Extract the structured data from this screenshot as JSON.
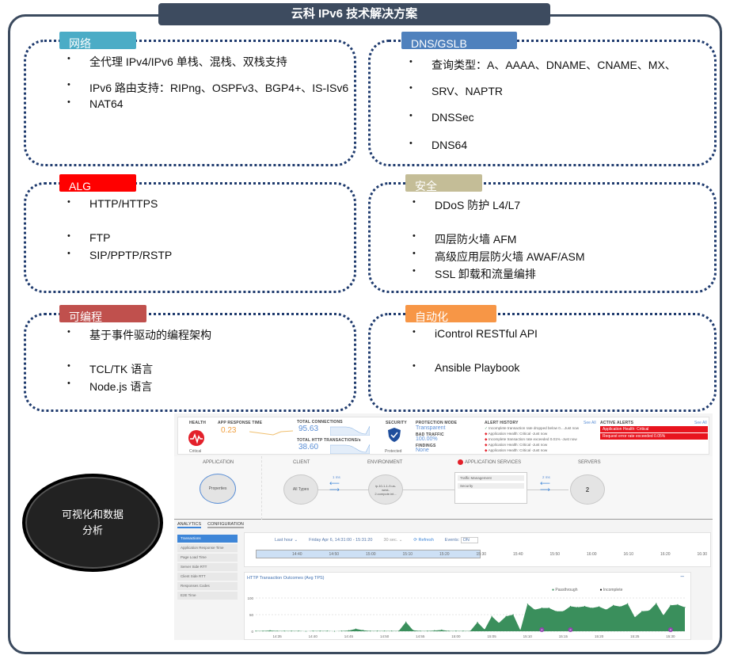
{
  "title": "云科 IPv6 技术解决方案",
  "sections": [
    {
      "label": "网络",
      "color": "#4bacc6",
      "items": [
        "全代理 IPv4/IPv6 单栈、混栈、双栈支持",
        "IPv6 路由支持：RIPng、OSPFv3、BGP4+、IS-ISv6",
        "NAT64"
      ]
    },
    {
      "label": "DNS/GSLB",
      "color": "#4f81bd",
      "items": [
        "查询类型：A、AAAA、DNAME、CNAME、MX、",
        "SRV、NAPTR",
        "DNSSec",
        "DNS64"
      ]
    },
    {
      "label": "ALG",
      "color": "#ff0000",
      "items": [
        "HTTP/HTTPS",
        "FTP",
        "SIP/PPTP/RSTP"
      ]
    },
    {
      "label": "安全",
      "color": "#c4bd97",
      "items": [
        "DDoS 防护 L4/L7",
        "四层防火墙 AFM",
        "高级应用层防火墙 AWAF/ASM",
        "SSL 卸载和流量编排"
      ]
    },
    {
      "label": "可编程",
      "color": "#c0504d",
      "items": [
        "基于事件驱动的编程架构",
        "TCL/TK 语言",
        "Node.js 语言"
      ]
    },
    {
      "label": "自动化",
      "color": "#f79646",
      "items": [
        "iControl RESTful API",
        "Ansible Playbook"
      ]
    }
  ],
  "circle_text": "可视化和数据分析",
  "dashboard": {
    "health": {
      "label": "HEALTH",
      "status": "Critical"
    },
    "app_response": {
      "label": "APP RESPONSE TIME",
      "value": "0.23"
    },
    "total_connections": {
      "label": "TOTAL CONNECTIONS",
      "value": "95.63"
    },
    "total_http": {
      "label": "TOTAL HTTP TRANSACTIONS/s",
      "value": "38.60"
    },
    "security": {
      "label": "SECURITY",
      "status": "Protected"
    },
    "protection": {
      "mode_label": "PROTECTION MODE",
      "mode": "Transparent",
      "bad_label": "BAD TRAFFIC",
      "bad": "100.00%",
      "findings_label": "FINDINGS",
      "findings": "None"
    },
    "alert_history": {
      "label": "ALERT HISTORY",
      "see_all": "See All",
      "items": [
        "Incomplete transaction rate dropped below 0....Just now",
        "Application Health: Critical -Just now",
        "Incomplete transaction rate exceeded 0.01% -Just now",
        "Application Health: Critical -Just now",
        "Application Health: Critical -Just now"
      ]
    },
    "active_alerts": {
      "label": "ACTIVE ALERTS",
      "see_all": "See All",
      "items": [
        "Application Health: Critical",
        "Request error rate exceeded 0.05%"
      ]
    },
    "flow": {
      "application": "APPLICATION",
      "properties": "Properties",
      "client": "CLIENT",
      "all_types": "All Types",
      "environment": "ENVIRONMENT",
      "env_node": "ip-10-1-1-9.us-west-2.compute.int...",
      "app_services": "APPLICATION SERVICES",
      "traffic": "Traffic Management",
      "security": "Security",
      "servers": "SERVERS",
      "server_count": "2",
      "latency1": "1 ms",
      "latency2": "2 ms"
    },
    "tabs": [
      "ANALYTICS",
      "CONFIGURATION"
    ],
    "menu": [
      "Transactions",
      "Application Response Time",
      "Page Load Time",
      "Server Side RTT",
      "Client Side RTT",
      "Responses Codes",
      "E2E Time"
    ],
    "toolbar": {
      "range": "Last hour ⌄",
      "date": "Friday Apr 6, 14:31:00 - 15:31:20",
      "interval": "30 sec. ⌄",
      "refresh": "⟳ Refresh",
      "events": "Events:",
      "on": "ON"
    },
    "timeline": [
      "14:40",
      "14:50",
      "15:00",
      "15:10",
      "15:20",
      "15:30",
      "15:40",
      "15:50",
      "16:00",
      "16:10",
      "16:20",
      "16:30"
    ]
  },
  "chart_data": {
    "type": "area",
    "title": "HTTP Transaction Outcomes (Avg TPS)",
    "legend": [
      "Passthrough",
      "Incomplete"
    ],
    "colors": {
      "Passthrough": "#3a8f5c",
      "Incomplete": "#111111",
      "events": "#8e44ad"
    },
    "ylim": [
      0,
      100
    ],
    "yticks": [
      "0",
      "50",
      "100"
    ],
    "xticks": [
      "14:35",
      "14:40",
      "14:45",
      "14:50",
      "14:55",
      "15:00",
      "15:05",
      "15:10",
      "15:15",
      "15:20",
      "15:25",
      "15:30"
    ],
    "grid": true,
    "series": [
      {
        "name": "Passthrough",
        "points": [
          [
            "14:32",
            1
          ],
          [
            "14:33",
            1
          ],
          [
            "14:34",
            2
          ],
          [
            "14:35",
            1
          ],
          [
            "14:36",
            1
          ],
          [
            "14:37",
            1
          ],
          [
            "14:38",
            1
          ],
          [
            "14:39",
            0
          ],
          [
            "14:40",
            1
          ],
          [
            "14:41",
            1
          ],
          [
            "14:42",
            1
          ],
          [
            "14:43",
            0
          ],
          [
            "14:44",
            1
          ],
          [
            "14:45",
            2
          ],
          [
            "14:46",
            7
          ],
          [
            "14:47",
            3
          ],
          [
            "14:48",
            1
          ],
          [
            "14:49",
            1
          ],
          [
            "14:50",
            1
          ],
          [
            "14:51",
            1
          ],
          [
            "14:52",
            1
          ],
          [
            "14:53",
            28
          ],
          [
            "14:54",
            3
          ],
          [
            "14:55",
            1
          ],
          [
            "14:56",
            1
          ],
          [
            "14:57",
            2
          ],
          [
            "14:58",
            4
          ],
          [
            "14:59",
            1
          ],
          [
            "15:00",
            1
          ],
          [
            "15:01",
            1
          ],
          [
            "15:02",
            1
          ],
          [
            "15:03",
            27
          ],
          [
            "15:04",
            5
          ],
          [
            "15:05",
            45
          ],
          [
            "15:06",
            25
          ],
          [
            "15:07",
            45
          ],
          [
            "15:08",
            50
          ],
          [
            "15:09",
            3
          ],
          [
            "15:10",
            82
          ],
          [
            "15:11",
            65
          ],
          [
            "15:12",
            70
          ],
          [
            "15:13",
            70
          ],
          [
            "15:14",
            60
          ],
          [
            "15:15",
            60
          ],
          [
            "15:16",
            75
          ],
          [
            "15:17",
            72
          ],
          [
            "15:18",
            75
          ],
          [
            "15:19",
            70
          ],
          [
            "15:20",
            74
          ],
          [
            "15:21",
            65
          ],
          [
            "15:22",
            78
          ],
          [
            "15:23",
            74
          ],
          [
            "15:24",
            83
          ],
          [
            "15:25",
            42
          ],
          [
            "15:26",
            60
          ],
          [
            "15:27",
            62
          ],
          [
            "15:28",
            84
          ],
          [
            "15:29",
            48
          ],
          [
            "15:30",
            78
          ],
          [
            "15:31",
            80
          ],
          [
            "15:32",
            72
          ]
        ]
      }
    ],
    "events": [
      {
        "time": "15:12",
        "label": "2"
      },
      {
        "time": "15:16",
        "label": "2"
      },
      {
        "time": "15:30",
        "label": "2"
      }
    ]
  }
}
